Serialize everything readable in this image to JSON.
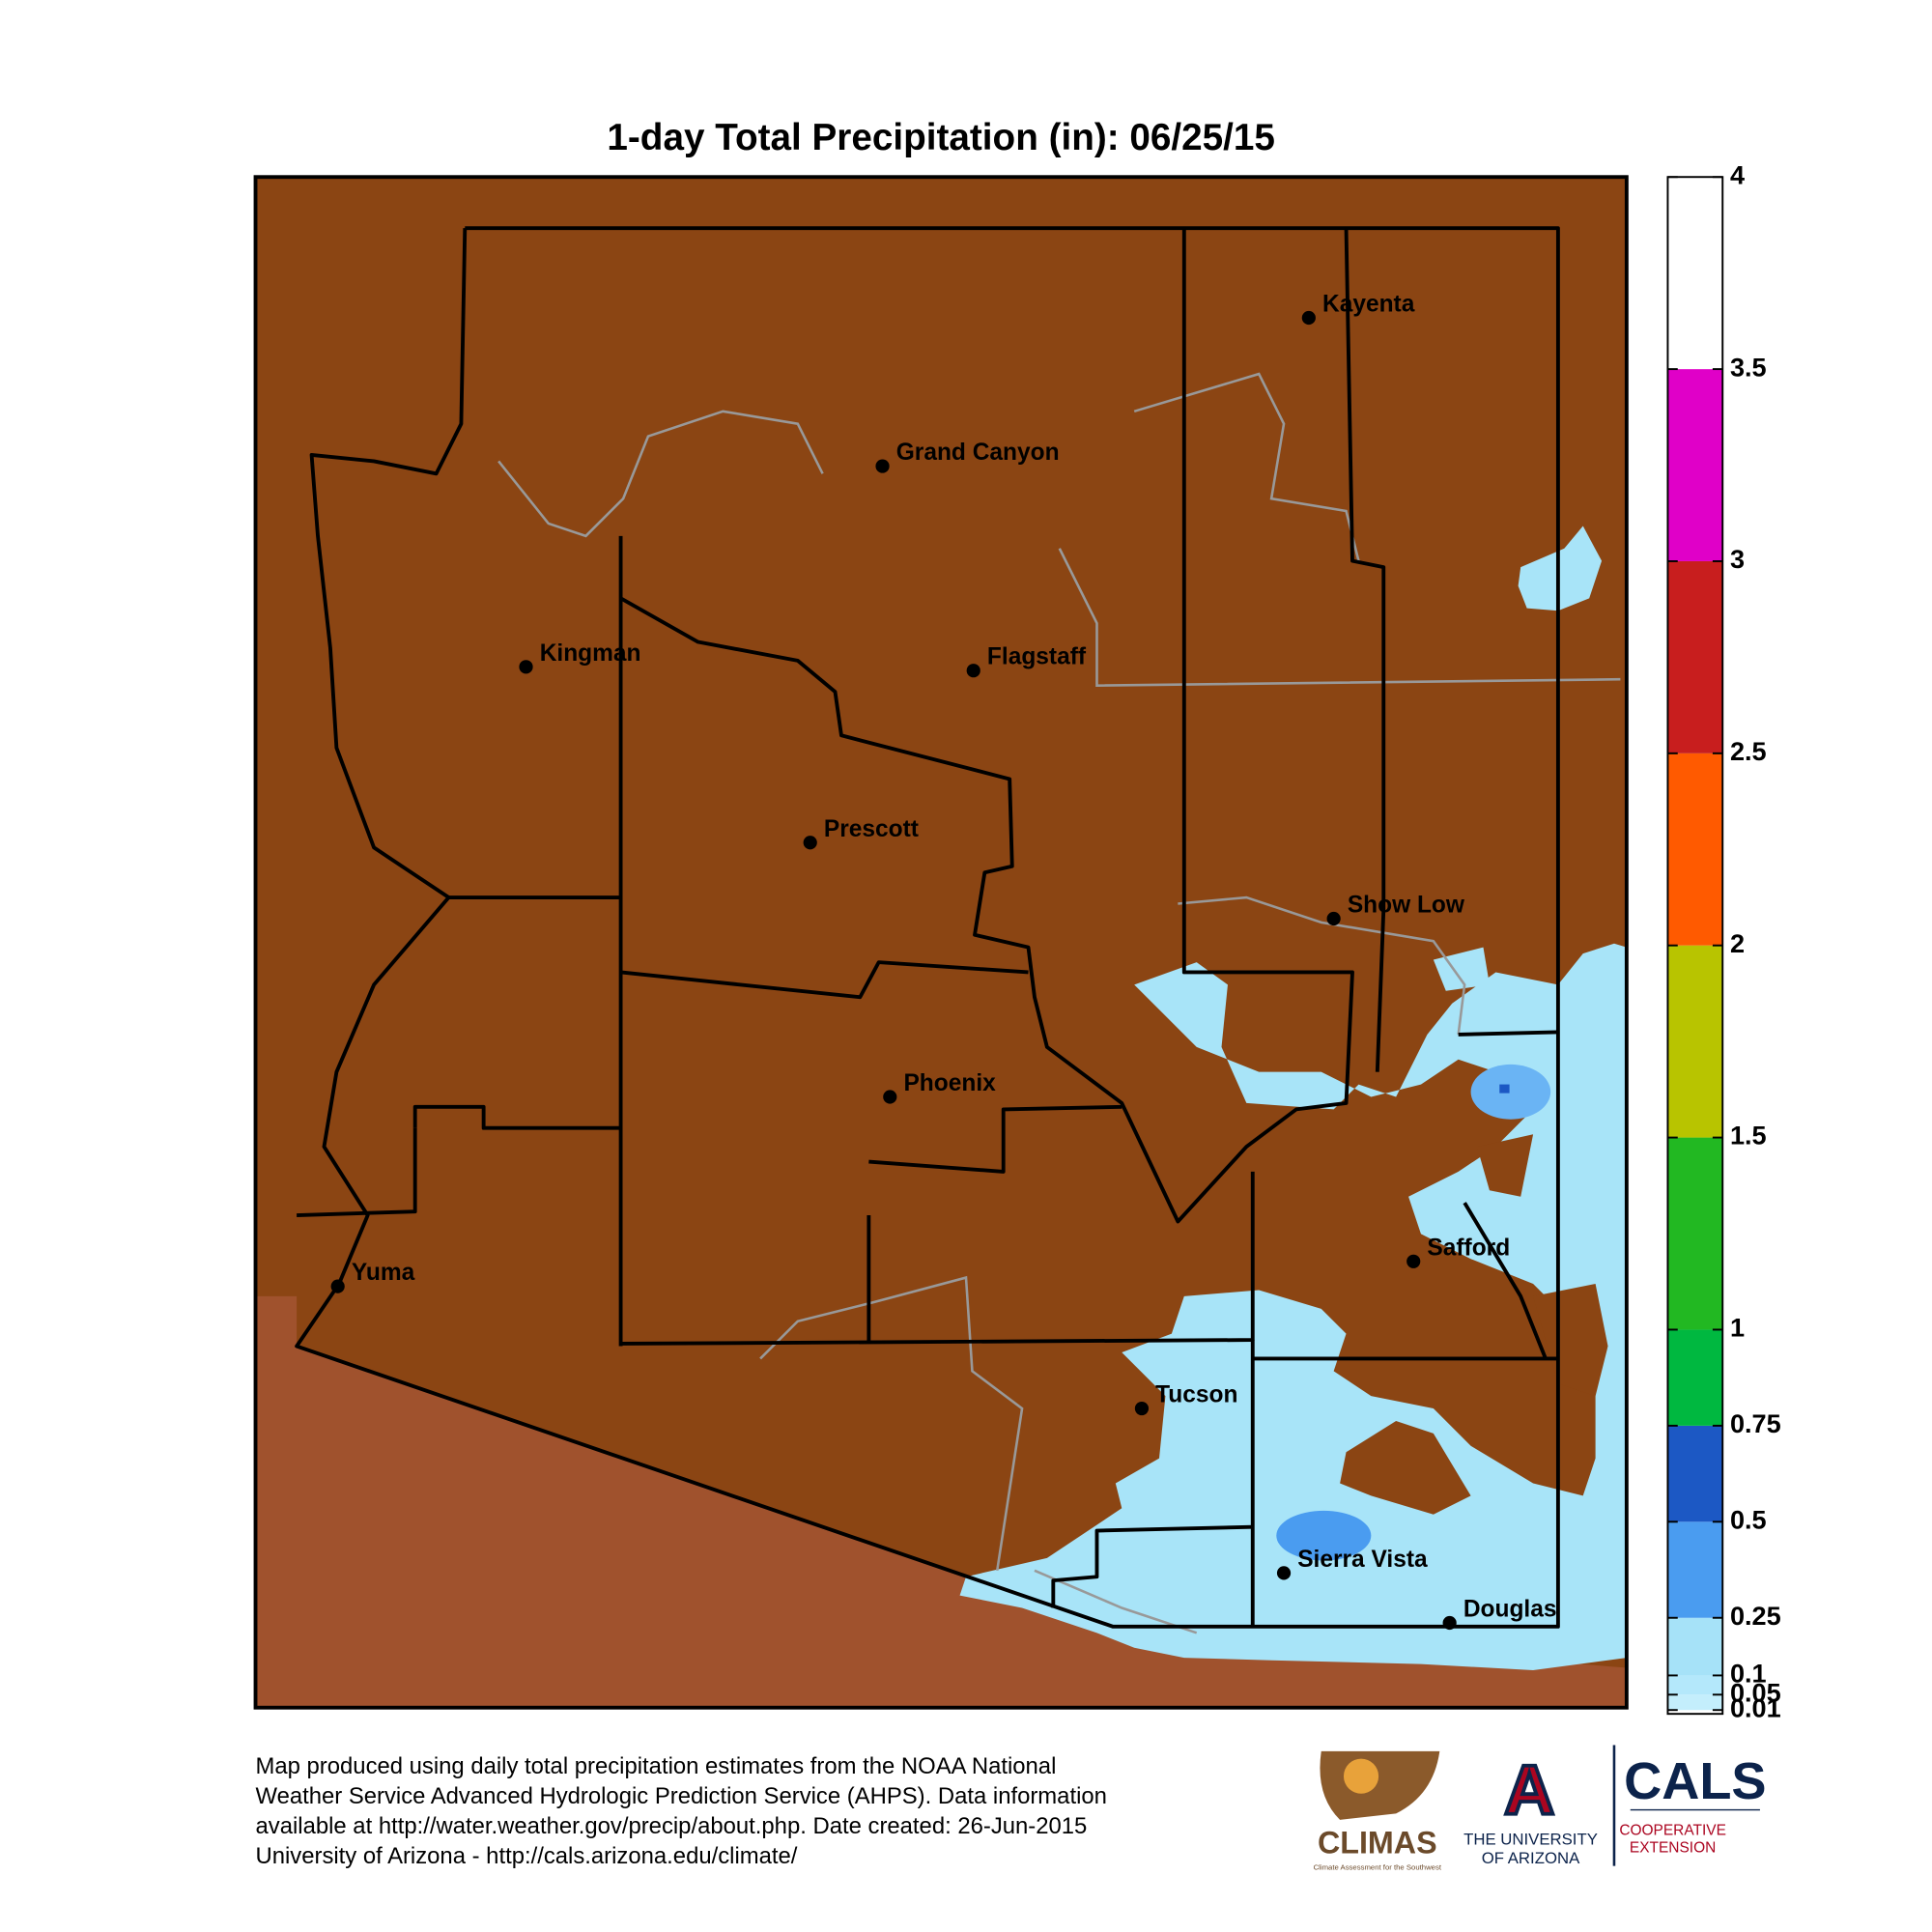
{
  "title": "1-day Total Precipitation (in): 06/25/15",
  "colorbar": {
    "ylim": [
      0,
      4
    ],
    "ticks": [
      0.01,
      0.05,
      0.1,
      0.25,
      0.5,
      0.75,
      1,
      1.5,
      2,
      2.5,
      3,
      3.5,
      4
    ],
    "colors": [
      "#c4eefc",
      "#b4e8fb",
      "#a6e2f8",
      "#4a9cf0",
      "#1c58c4",
      "#00b840",
      "#22b822",
      "#b8c400",
      "#ff5a00",
      "#c81e1e",
      "#e000c8",
      "#ffffff"
    ]
  },
  "cities": [
    "Kayenta",
    "Grand Canyon",
    "Kingman",
    "Flagstaff",
    "Prescott",
    "Show Low",
    "Phoenix",
    "Safford",
    "Yuma",
    "Tucson",
    "Sierra Vista",
    "Douglas"
  ],
  "footer": [
    "Map produced using daily total precipitation estimates from the NOAA National",
    "Weather Service Advanced Hydrologic Prediction Service (AHPS). Data information",
    "available at http://water.weather.gov/precip/about.php. Date created: 26-Jun-2015",
    "University of Arizona - http://cals.arizona.edu/climate/"
  ],
  "logos": {
    "climas": "CLIMAS",
    "climas_sub": "Climate Assessment for the Southwest",
    "ua_letter": "A",
    "ua_line1": "THE UNIVERSITY",
    "ua_line2": "OF ARIZONA",
    "cals": "CALS",
    "cals_line1": "COOPERATIVE",
    "cals_line2": "EXTENSION"
  }
}
